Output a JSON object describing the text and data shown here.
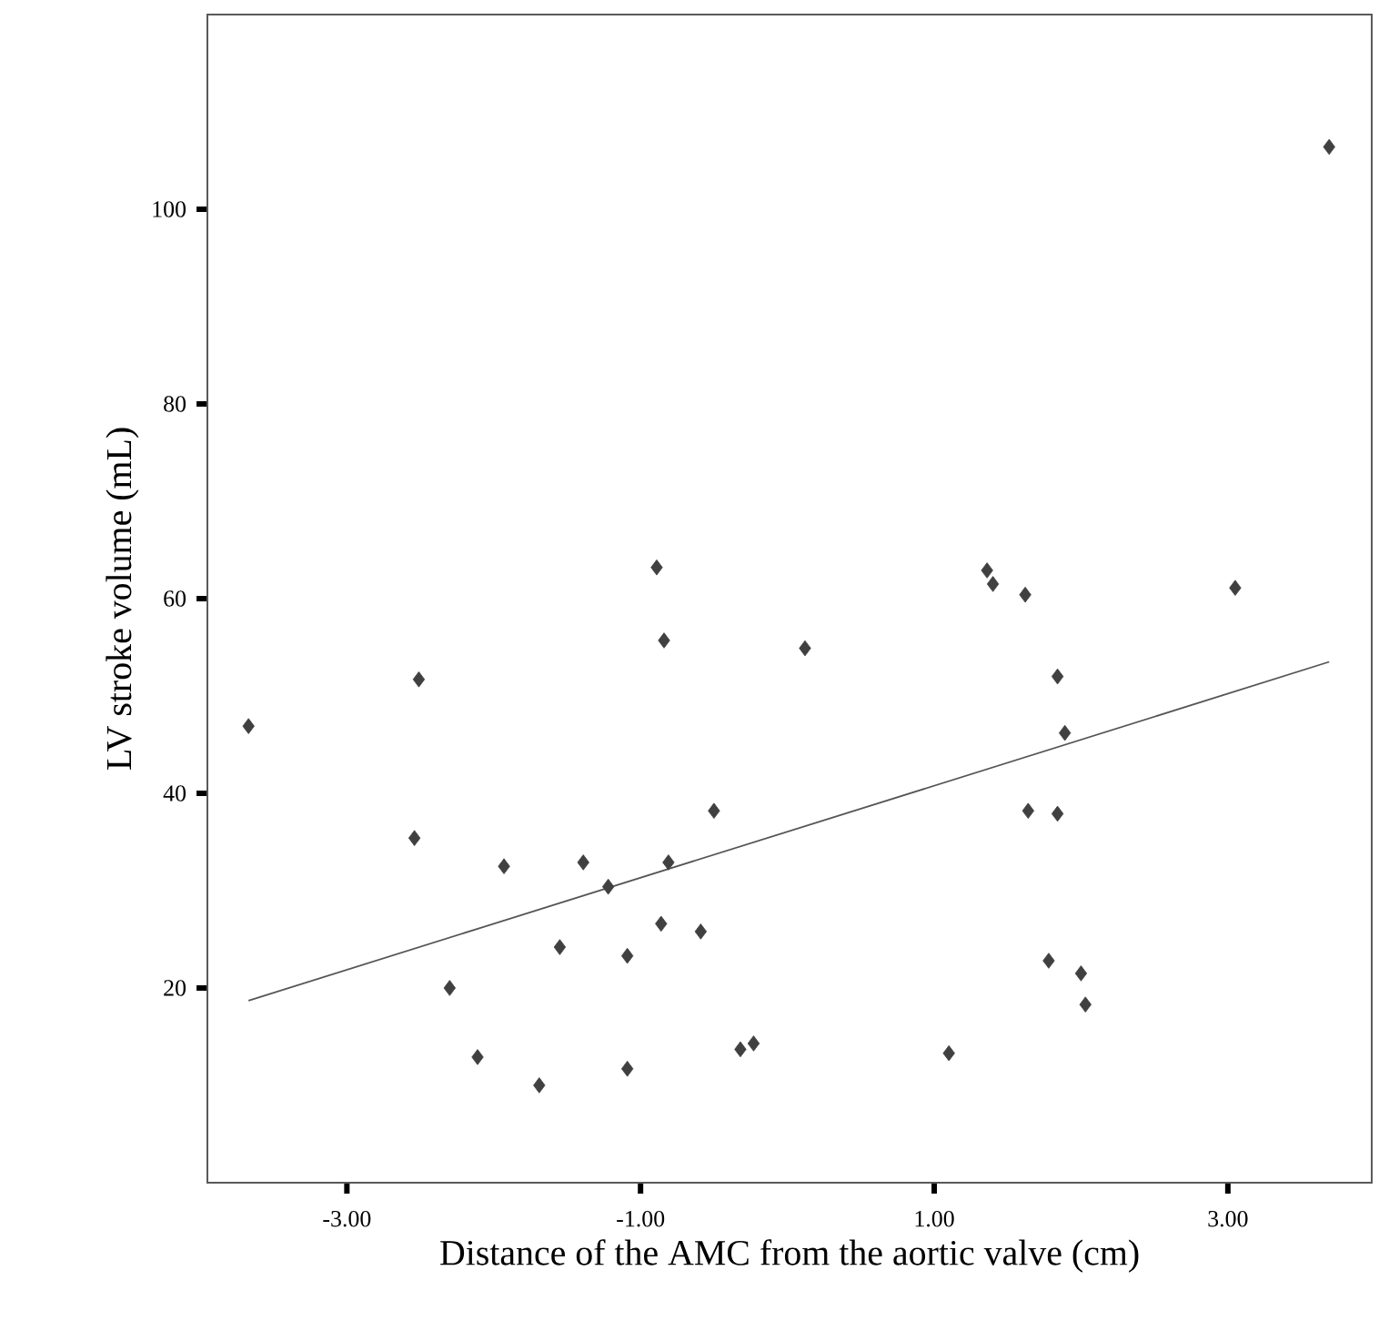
{
  "chart_data": {
    "type": "scatter",
    "xlabel": "Distance of the AMC from the aortic valve (cm)",
    "ylabel": "LV stroke volume (mL)",
    "xlim": [
      -3.95,
      3.98
    ],
    "ylim": [
      0,
      120
    ],
    "xticks": [
      {
        "value": -3,
        "label": "-3.00"
      },
      {
        "value": -1,
        "label": "-1.00"
      },
      {
        "value": 1,
        "label": "1.00"
      },
      {
        "value": 3,
        "label": "3.00"
      }
    ],
    "yticks": [
      20,
      40,
      60,
      80,
      100
    ],
    "marker": "diamond",
    "series": [
      {
        "color": "#404040",
        "x": [
          -3.67,
          -2.51,
          -0.84,
          -2.54,
          -1.93,
          -1.39,
          -0.5,
          -0.81,
          -1.22,
          -0.86,
          -0.59,
          -1.55,
          -1.09,
          -2.3,
          -2.11,
          -1.69,
          -1.09,
          -0.32,
          -0.23,
          -0.89,
          3.69,
          1.36,
          1.4,
          1.62,
          3.05,
          0.12,
          1.84,
          1.89,
          1.64,
          1.84,
          1.78,
          2.0,
          2.03,
          1.1
        ],
        "values": [
          46.9,
          51.7,
          55.7,
          35.4,
          32.5,
          32.9,
          38.2,
          32.9,
          30.4,
          26.6,
          25.8,
          24.2,
          23.3,
          20.0,
          12.9,
          10.0,
          11.7,
          13.7,
          14.3,
          63.2,
          106.4,
          62.9,
          61.5,
          60.4,
          61.1,
          54.9,
          52.0,
          46.2,
          38.2,
          37.9,
          22.8,
          21.5,
          18.3,
          13.3
        ]
      },
      {
        "type": "line",
        "color": "#555555",
        "marker": "none",
        "line_style": "solid",
        "x": [
          -3.67,
          3.69
        ],
        "values": [
          18.7,
          53.5
        ]
      }
    ]
  }
}
